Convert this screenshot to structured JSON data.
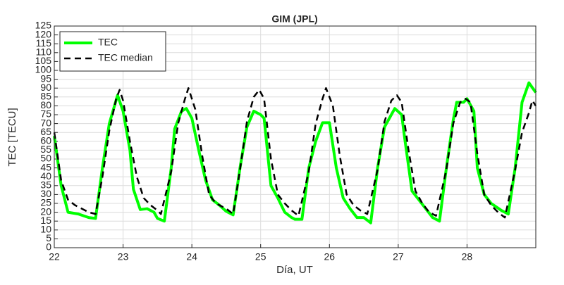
{
  "chart_data": {
    "type": "line",
    "title": "GIM (JPL)",
    "xlabel": "Día, UT",
    "ylabel": "TEC [TECU]",
    "xlim": [
      22,
      29
    ],
    "xticks": [
      22,
      23,
      24,
      25,
      26,
      27,
      28
    ],
    "ylim": [
      0,
      125
    ],
    "yticks": [
      0,
      5,
      10,
      15,
      20,
      25,
      30,
      35,
      40,
      45,
      50,
      55,
      60,
      65,
      70,
      75,
      80,
      85,
      90,
      95,
      100,
      105,
      110,
      115,
      120,
      125
    ],
    "grid": true,
    "legend": "upper left",
    "series": [
      {
        "name": "TEC",
        "color": "#00ff00",
        "dash": false,
        "x": [
          22.0,
          22.1,
          22.2,
          22.35,
          22.5,
          22.6,
          22.7,
          22.8,
          22.92,
          23.0,
          23.1,
          23.15,
          23.25,
          23.35,
          23.45,
          23.5,
          23.6,
          23.7,
          23.75,
          23.85,
          23.92,
          24.0,
          24.1,
          24.2,
          24.3,
          24.4,
          24.5,
          24.6,
          24.7,
          24.8,
          24.9,
          25.0,
          25.05,
          25.15,
          25.25,
          25.35,
          25.45,
          25.5,
          25.6,
          25.7,
          25.8,
          25.9,
          26.0,
          26.1,
          26.2,
          26.3,
          26.4,
          26.5,
          26.6,
          26.7,
          26.8,
          26.9,
          26.95,
          27.05,
          27.1,
          27.2,
          27.3,
          27.4,
          27.5,
          27.6,
          27.7,
          27.8,
          27.85,
          27.95,
          28.0,
          28.1,
          28.15,
          28.25,
          28.35,
          28.5,
          28.6,
          28.7,
          28.8,
          28.9,
          29.0
        ],
        "values": [
          63,
          35,
          20,
          19,
          17,
          16.5,
          45,
          70,
          86,
          77,
          55,
          33,
          21.5,
          22,
          20,
          16.5,
          15,
          45,
          67,
          77,
          78.5,
          73,
          55,
          38,
          27,
          24,
          20.5,
          18.5,
          45,
          68,
          77,
          75,
          73,
          35,
          28,
          20,
          17,
          16,
          16,
          45,
          60,
          70.5,
          70.5,
          45,
          28,
          22,
          17,
          17,
          14,
          45,
          68,
          75,
          78.5,
          75,
          60,
          32,
          27,
          22,
          17,
          15,
          45,
          72,
          82,
          82,
          84,
          77,
          45,
          30,
          25,
          21,
          19,
          45,
          82,
          93,
          87.5
        ]
      },
      {
        "name": "TEC median",
        "color": "#000000",
        "dash": true,
        "x": [
          22.0,
          22.1,
          22.2,
          22.3,
          22.5,
          22.6,
          22.7,
          22.8,
          22.9,
          22.95,
          23.0,
          23.1,
          23.2,
          23.3,
          23.4,
          23.5,
          23.55,
          23.7,
          23.8,
          23.9,
          23.95,
          24.05,
          24.15,
          24.25,
          24.35,
          24.5,
          24.6,
          24.7,
          24.8,
          24.9,
          24.98,
          25.05,
          25.15,
          25.25,
          25.35,
          25.45,
          25.55,
          25.7,
          25.8,
          25.9,
          25.95,
          26.05,
          26.15,
          26.25,
          26.35,
          26.45,
          26.55,
          26.7,
          26.8,
          26.9,
          26.98,
          27.05,
          27.15,
          27.25,
          27.35,
          27.45,
          27.55,
          27.7,
          27.8,
          27.9,
          27.98,
          28.05,
          28.15,
          28.25,
          28.35,
          28.45,
          28.55,
          28.7,
          28.8,
          28.9,
          28.95,
          29.0
        ],
        "values": [
          65,
          38,
          27,
          24,
          20,
          19,
          40,
          66,
          84,
          89,
          83,
          60,
          40,
          28,
          24,
          21,
          19,
          43,
          70,
          84,
          90,
          78,
          52,
          30,
          25,
          22,
          19,
          44,
          71,
          85,
          89,
          84,
          50,
          30,
          25,
          21,
          18,
          43,
          70,
          84,
          90,
          80,
          52,
          30,
          24,
          21,
          19,
          44,
          71,
          83,
          86,
          82,
          55,
          32,
          25,
          20,
          18,
          44,
          70,
          82,
          84,
          82,
          53,
          30,
          24,
          20,
          17,
          44,
          65,
          76,
          83,
          80
        ]
      }
    ]
  }
}
